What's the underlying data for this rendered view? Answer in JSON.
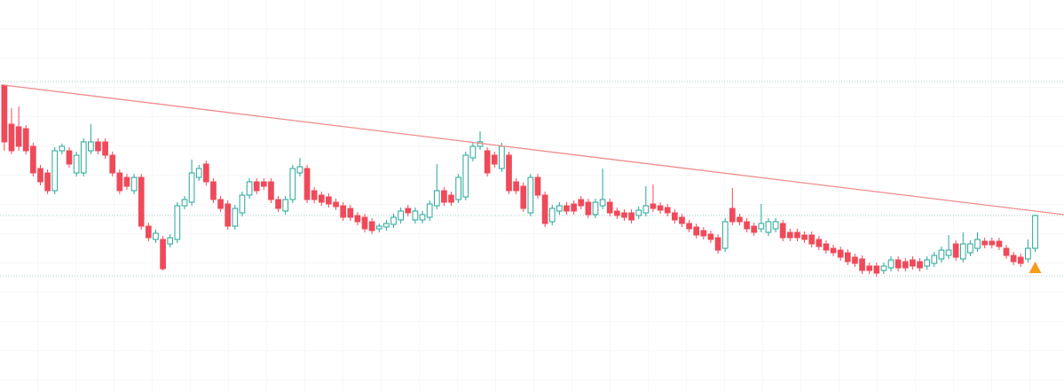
{
  "chart_data": {
    "type": "candlestick",
    "xlim": [
      -0.6,
      147
    ],
    "ylim": [
      0,
      442
    ],
    "up_color": "#26a69a",
    "down_color": "#ef4a5a",
    "grid": true,
    "trendline": {
      "x": [
        0,
        147
      ],
      "y": [
        346,
        200
      ],
      "color": "#f08c8c"
    },
    "hlines": [
      350,
      199,
      131
    ],
    "hline_color": "#a9cfc9",
    "marker": {
      "x": 143,
      "y": 140,
      "color": "#f59c1a"
    },
    "candles": [
      [
        346,
        346,
        272,
        282
      ],
      [
        302,
        320,
        268,
        272
      ],
      [
        299,
        322,
        272,
        277
      ],
      [
        297,
        301,
        268,
        272
      ],
      [
        277,
        281,
        243,
        247
      ],
      [
        252,
        256,
        233,
        237
      ],
      [
        247,
        251,
        223,
        227
      ],
      [
        227,
        276,
        223,
        272
      ],
      [
        272,
        280,
        268,
        277
      ],
      [
        272,
        276,
        253,
        257
      ],
      [
        247,
        271,
        243,
        267
      ],
      [
        247,
        286,
        243,
        282
      ],
      [
        272,
        302,
        268,
        282
      ],
      [
        282,
        286,
        268,
        272
      ],
      [
        282,
        286,
        263,
        267
      ],
      [
        267,
        271,
        243,
        247
      ],
      [
        247,
        251,
        223,
        227
      ],
      [
        242,
        246,
        228,
        232
      ],
      [
        227,
        246,
        223,
        242
      ],
      [
        242,
        246,
        183,
        187
      ],
      [
        187,
        191,
        170,
        174
      ],
      [
        172,
        183,
        168,
        179
      ],
      [
        172,
        176,
        137,
        139
      ],
      [
        167,
        178,
        163,
        174
      ],
      [
        172,
        214,
        168,
        210
      ],
      [
        210,
        221,
        206,
        217
      ],
      [
        214,
        262,
        210,
        247
      ],
      [
        242,
        256,
        238,
        252
      ],
      [
        257,
        261,
        233,
        237
      ],
      [
        237,
        241,
        213,
        217
      ],
      [
        217,
        221,
        203,
        207
      ],
      [
        212,
        216,
        183,
        187
      ],
      [
        187,
        211,
        183,
        207
      ],
      [
        202,
        226,
        198,
        222
      ],
      [
        222,
        241,
        218,
        237
      ],
      [
        237,
        241,
        223,
        227
      ],
      [
        237,
        241,
        228,
        232
      ],
      [
        237,
        241,
        213,
        217
      ],
      [
        217,
        221,
        203,
        207
      ],
      [
        204,
        221,
        200,
        217
      ],
      [
        217,
        256,
        213,
        252
      ],
      [
        247,
        264,
        243,
        254
      ],
      [
        252,
        256,
        213,
        217
      ],
      [
        227,
        231,
        213,
        217
      ],
      [
        222,
        226,
        210,
        214
      ],
      [
        220,
        224,
        208,
        212
      ],
      [
        214,
        218,
        205,
        209
      ],
      [
        210,
        214,
        193,
        197
      ],
      [
        207,
        211,
        193,
        197
      ],
      [
        199,
        203,
        188,
        192
      ],
      [
        197,
        201,
        180,
        184
      ],
      [
        192,
        196,
        178,
        182
      ],
      [
        184,
        190,
        180,
        187
      ],
      [
        186,
        194,
        182,
        190
      ],
      [
        189,
        201,
        185,
        197
      ],
      [
        194,
        208,
        190,
        204
      ],
      [
        207,
        211,
        198,
        202
      ],
      [
        194,
        208,
        190,
        204
      ],
      [
        194,
        204,
        190,
        200
      ],
      [
        197,
        216,
        193,
        212
      ],
      [
        210,
        257,
        206,
        227
      ],
      [
        227,
        231,
        210,
        214
      ],
      [
        222,
        226,
        210,
        214
      ],
      [
        217,
        246,
        213,
        242
      ],
      [
        220,
        271,
        216,
        267
      ],
      [
        264,
        281,
        260,
        277
      ],
      [
        277,
        294,
        273,
        282
      ],
      [
        272,
        276,
        243,
        247
      ],
      [
        267,
        271,
        253,
        257
      ],
      [
        252,
        281,
        248,
        277
      ],
      [
        267,
        271,
        223,
        227
      ],
      [
        237,
        241,
        223,
        227
      ],
      [
        232,
        236,
        203,
        207
      ],
      [
        202,
        246,
        198,
        242
      ],
      [
        242,
        246,
        218,
        222
      ],
      [
        222,
        226,
        186,
        190
      ],
      [
        192,
        211,
        188,
        207
      ],
      [
        204,
        214,
        200,
        210
      ],
      [
        210,
        214,
        200,
        204
      ],
      [
        212,
        216,
        200,
        204
      ],
      [
        217,
        221,
        206,
        210
      ],
      [
        214,
        218,
        196,
        200
      ],
      [
        200,
        218,
        196,
        214
      ],
      [
        210,
        252,
        206,
        217
      ],
      [
        214,
        218,
        198,
        202
      ],
      [
        204,
        208,
        195,
        199
      ],
      [
        202,
        206,
        193,
        197
      ],
      [
        202,
        206,
        190,
        194
      ],
      [
        199,
        209,
        195,
        205
      ],
      [
        202,
        232,
        198,
        210
      ],
      [
        212,
        234,
        203,
        207
      ],
      [
        210,
        214,
        201,
        205
      ],
      [
        208,
        212,
        198,
        202
      ],
      [
        202,
        206,
        190,
        194
      ],
      [
        197,
        201,
        186,
        190
      ],
      [
        190,
        194,
        180,
        184
      ],
      [
        186,
        190,
        173,
        177
      ],
      [
        182,
        186,
        172,
        176
      ],
      [
        178,
        182,
        168,
        172
      ],
      [
        174,
        178,
        156,
        160
      ],
      [
        162,
        196,
        158,
        192
      ],
      [
        207,
        230,
        188,
        192
      ],
      [
        197,
        201,
        188,
        192
      ],
      [
        192,
        196,
        180,
        184
      ],
      [
        187,
        191,
        176,
        180
      ],
      [
        184,
        212,
        180,
        190
      ],
      [
        180,
        196,
        176,
        192
      ],
      [
        184,
        196,
        180,
        192
      ],
      [
        190,
        194,
        170,
        174
      ],
      [
        180,
        184,
        170,
        174
      ],
      [
        180,
        184,
        170,
        174
      ],
      [
        177,
        181,
        168,
        172
      ],
      [
        177,
        181,
        163,
        167
      ],
      [
        172,
        176,
        160,
        164
      ],
      [
        167,
        171,
        156,
        160
      ],
      [
        162,
        166,
        153,
        157
      ],
      [
        160,
        164,
        148,
        152
      ],
      [
        157,
        161,
        143,
        147
      ],
      [
        152,
        156,
        141,
        145
      ],
      [
        150,
        154,
        133,
        137
      ],
      [
        142,
        146,
        133,
        137
      ],
      [
        142,
        146,
        130,
        134
      ],
      [
        137,
        146,
        133,
        142
      ],
      [
        140,
        153,
        136,
        149
      ],
      [
        149,
        153,
        136,
        140
      ],
      [
        147,
        151,
        136,
        140
      ],
      [
        149,
        153,
        138,
        142
      ],
      [
        147,
        151,
        136,
        140
      ],
      [
        142,
        153,
        138,
        149
      ],
      [
        145,
        158,
        141,
        154
      ],
      [
        150,
        164,
        146,
        160
      ],
      [
        154,
        177,
        150,
        160
      ],
      [
        167,
        171,
        148,
        152
      ],
      [
        150,
        180,
        146,
        167
      ],
      [
        157,
        171,
        153,
        167
      ],
      [
        162,
        180,
        158,
        172
      ],
      [
        170,
        174,
        162,
        166
      ],
      [
        170,
        174,
        162,
        166
      ],
      [
        170,
        174,
        160,
        164
      ],
      [
        162,
        166,
        150,
        154
      ],
      [
        154,
        158,
        143,
        147
      ],
      [
        152,
        156,
        141,
        145
      ],
      [
        150,
        172,
        146,
        162
      ],
      [
        162,
        200,
        158,
        199
      ]
    ]
  }
}
